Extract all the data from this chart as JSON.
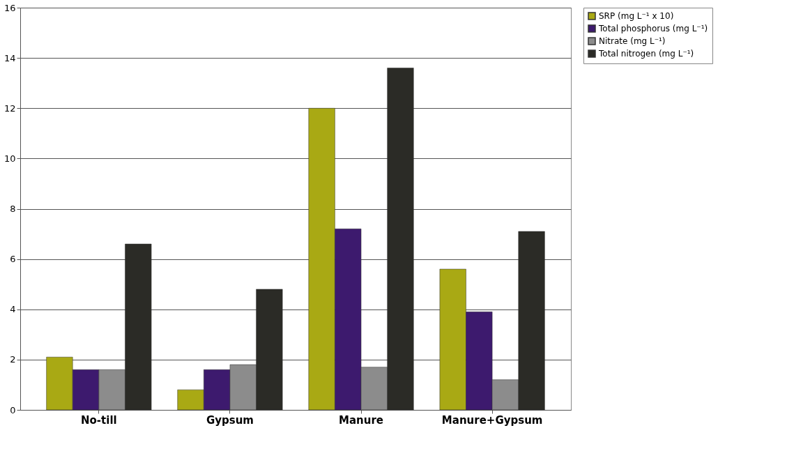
{
  "chart_data": {
    "type": "bar",
    "categories": [
      "No-till",
      "Gypsum",
      "Manure",
      "Manure+Gypsum"
    ],
    "series": [
      {
        "name": "SRP (mg L⁻¹ x 10)",
        "color": "#a9a914",
        "values": [
          2.1,
          0.8,
          12.0,
          5.6
        ]
      },
      {
        "name": "Total phosphorus (mg L⁻¹)",
        "color": "#3d1a6e",
        "values": [
          1.6,
          1.6,
          7.2,
          3.9
        ]
      },
      {
        "name": "Nitrate (mg L⁻¹)",
        "color": "#8c8c8c",
        "values": [
          1.6,
          1.8,
          1.7,
          1.2
        ]
      },
      {
        "name": "Total nitrogen (mg L⁻¹)",
        "color": "#2b2b26",
        "values": [
          6.6,
          4.8,
          13.6,
          7.1
        ]
      }
    ],
    "ylim": [
      0,
      16
    ],
    "yticks": [
      0,
      2,
      4,
      6,
      8,
      10,
      12,
      14,
      16
    ],
    "grid": "y",
    "legend": "right"
  }
}
